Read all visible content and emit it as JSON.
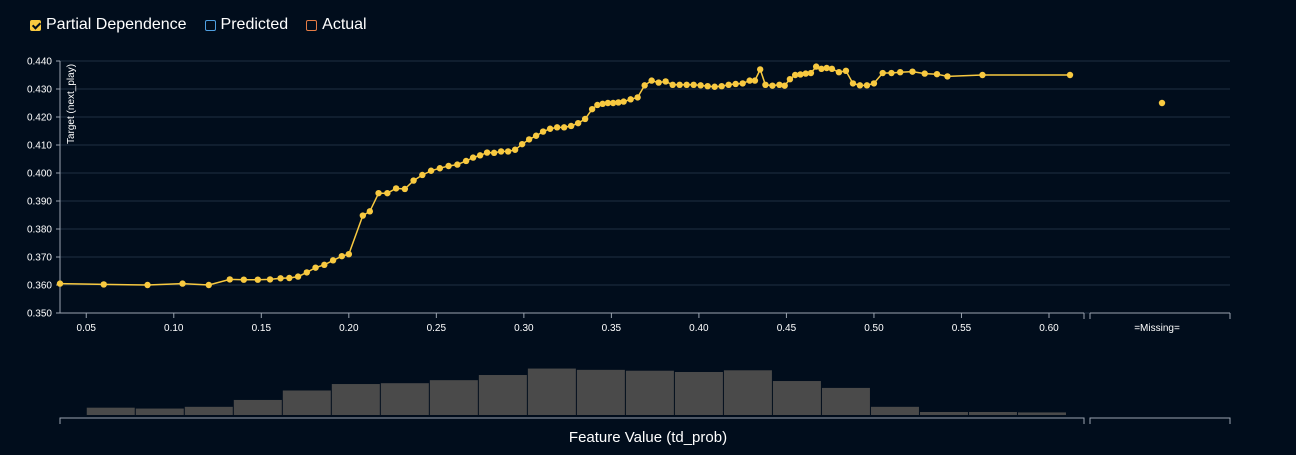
{
  "legend": [
    {
      "label": "Partial Dependence",
      "color": "#f8c940",
      "checked": true
    },
    {
      "label": "Predicted",
      "color": "#4f9fe0",
      "checked": false
    },
    {
      "label": "Actual",
      "color": "#e47c46",
      "checked": false
    }
  ],
  "colors": {
    "line": "#f8c940",
    "grid": "#1f2e42",
    "bar": "#4a4a4a",
    "axis": "#9aa4b0"
  },
  "chart_data": {
    "type": "line",
    "title": "",
    "xlabel": "Feature Value (td_prob)",
    "ylabel": "Target (next_play)",
    "xlim": [
      0.035,
      0.62
    ],
    "ylim": [
      0.35,
      0.44
    ],
    "x_ticks": [
      "0.05",
      "0.10",
      "0.15",
      "0.20",
      "0.25",
      "0.30",
      "0.35",
      "0.40",
      "0.45",
      "0.50",
      "0.55",
      "0.60"
    ],
    "y_ticks": [
      "0.350",
      "0.360",
      "0.370",
      "0.380",
      "0.390",
      "0.400",
      "0.410",
      "0.420",
      "0.430",
      "0.440"
    ],
    "missing_label": "=Missing=",
    "missing_value": 0.425,
    "series": [
      {
        "x": [
          0.035,
          0.06,
          0.085,
          0.105,
          0.12,
          0.132,
          0.14,
          0.148,
          0.155,
          0.161,
          0.166,
          0.171,
          0.176,
          0.181,
          0.186,
          0.191,
          0.196,
          0.2,
          0.208,
          0.212,
          0.217,
          0.222,
          0.227,
          0.232,
          0.237,
          0.242,
          0.247,
          0.252,
          0.257,
          0.262,
          0.267,
          0.271,
          0.275,
          0.279,
          0.283,
          0.287,
          0.291,
          0.295,
          0.299,
          0.303,
          0.307,
          0.311,
          0.315,
          0.319,
          0.323,
          0.327,
          0.331,
          0.335,
          0.339,
          0.342,
          0.345,
          0.348,
          0.351,
          0.354,
          0.357,
          0.361,
          0.365,
          0.369,
          0.373,
          0.377,
          0.381,
          0.385,
          0.389,
          0.393,
          0.397,
          0.401,
          0.405,
          0.409,
          0.413,
          0.417,
          0.421,
          0.425,
          0.429,
          0.432,
          0.435,
          0.438,
          0.442,
          0.446,
          0.449,
          0.452,
          0.455,
          0.458,
          0.461,
          0.464,
          0.467,
          0.47,
          0.473,
          0.476,
          0.48,
          0.484,
          0.488,
          0.492,
          0.496,
          0.5,
          0.505,
          0.51,
          0.515,
          0.522,
          0.529,
          0.536,
          0.542,
          0.562,
          0.612
        ],
        "values": [
          0.3605,
          0.3602,
          0.36,
          0.3605,
          0.36,
          0.362,
          0.3619,
          0.3619,
          0.362,
          0.3624,
          0.3625,
          0.363,
          0.3645,
          0.3662,
          0.3672,
          0.3688,
          0.3703,
          0.371,
          0.3848,
          0.3863,
          0.3928,
          0.3928,
          0.3945,
          0.3943,
          0.3973,
          0.3993,
          0.4008,
          0.4017,
          0.4025,
          0.403,
          0.4043,
          0.4055,
          0.4063,
          0.4073,
          0.4072,
          0.4077,
          0.4077,
          0.4083,
          0.4103,
          0.412,
          0.4133,
          0.4148,
          0.4158,
          0.4163,
          0.4163,
          0.4168,
          0.4178,
          0.4193,
          0.4228,
          0.4243,
          0.4247,
          0.425,
          0.425,
          0.4252,
          0.4255,
          0.4263,
          0.427,
          0.4313,
          0.433,
          0.4323,
          0.4327,
          0.4315,
          0.4315,
          0.4315,
          0.4315,
          0.4313,
          0.431,
          0.4308,
          0.431,
          0.4315,
          0.4318,
          0.432,
          0.433,
          0.433,
          0.437,
          0.4315,
          0.4312,
          0.4315,
          0.4312,
          0.4335,
          0.435,
          0.4352,
          0.4355,
          0.4357,
          0.438,
          0.4372,
          0.4375,
          0.4372,
          0.436,
          0.4365,
          0.432,
          0.4313,
          0.4313,
          0.432,
          0.4357,
          0.4357,
          0.436,
          0.4362,
          0.4355,
          0.4353,
          0.4345,
          0.435,
          0.435
        ]
      }
    ],
    "histogram": {
      "bins": [
        0.05,
        0.078,
        0.106,
        0.134,
        0.162,
        0.19,
        0.218,
        0.246,
        0.274,
        0.302,
        0.33,
        0.358,
        0.386,
        0.414,
        0.442,
        0.47,
        0.498,
        0.526,
        0.554,
        0.582,
        0.61
      ],
      "counts": [
        0.17,
        0.15,
        0.19,
        0.35,
        0.57,
        0.72,
        0.74,
        0.81,
        0.93,
        1.08,
        1.05,
        1.03,
        1.0,
        1.04,
        0.79,
        0.63,
        0.19,
        0.07,
        0.07,
        0.06
      ],
      "missing_count": 0
    }
  }
}
